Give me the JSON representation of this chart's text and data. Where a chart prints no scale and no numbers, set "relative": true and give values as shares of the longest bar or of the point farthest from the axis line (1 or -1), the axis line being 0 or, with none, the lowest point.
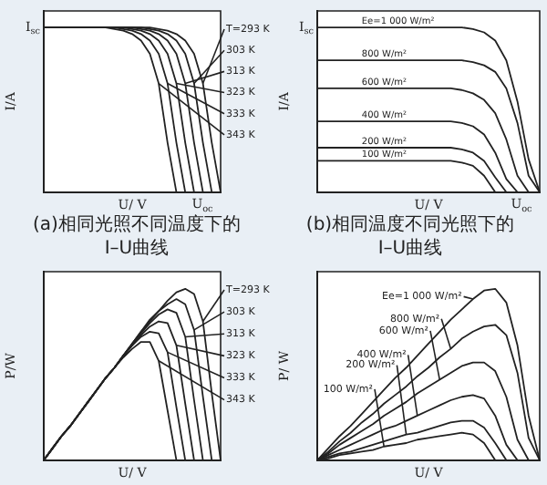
{
  "chart_data": [
    {
      "type": "line",
      "relative": true,
      "legend": "right",
      "title": "(a)相同光照不同温度下的I–U曲线",
      "xlabel": "U/ V",
      "ylabel": "I/A",
      "annotations": [
        "I$_{sc}$",
        "U$_{oc}$"
      ],
      "categories": [
        null,
        null,
        null,
        null,
        null,
        null,
        null,
        null,
        null,
        null,
        null,
        null,
        null,
        null,
        null,
        null,
        null,
        null,
        null,
        null,
        null
      ],
      "series": [
        {
          "name": "T=293 K",
          "color": "#222222",
          "values": [
            1,
            1,
            1,
            1,
            1,
            1,
            1,
            1,
            1,
            1,
            1,
            1,
            1,
            0.99,
            0.98,
            0.96,
            0.92,
            0.84,
            0.66,
            0.3,
            0
          ]
        },
        {
          "name": "303 K",
          "color": "#222222",
          "values": [
            1,
            1,
            1,
            1,
            1,
            1,
            1,
            1,
            1,
            1,
            1,
            1,
            0.99,
            0.98,
            0.96,
            0.92,
            0.84,
            0.66,
            0.3,
            0,
            null
          ]
        },
        {
          "name": "313 K",
          "color": "#222222",
          "values": [
            1,
            1,
            1,
            1,
            1,
            1,
            1,
            1,
            1,
            1,
            1,
            0.99,
            0.98,
            0.96,
            0.92,
            0.84,
            0.66,
            0.3,
            0,
            null,
            null
          ]
        },
        {
          "name": "323 K",
          "color": "#222222",
          "values": [
            1,
            1,
            1,
            1,
            1,
            1,
            1,
            1,
            1,
            1,
            0.99,
            0.98,
            0.96,
            0.92,
            0.84,
            0.66,
            0.3,
            0,
            null,
            null,
            null
          ]
        },
        {
          "name": "333 K",
          "color": "#222222",
          "values": [
            1,
            1,
            1,
            1,
            1,
            1,
            1,
            1,
            1,
            0.99,
            0.98,
            0.96,
            0.92,
            0.84,
            0.66,
            0.3,
            0,
            null,
            null,
            null,
            null
          ]
        },
        {
          "name": "343 K",
          "color": "#222222",
          "values": [
            1,
            1,
            1,
            1,
            1,
            1,
            1,
            1,
            0.99,
            0.98,
            0.96,
            0.92,
            0.84,
            0.66,
            0.3,
            0,
            null,
            null,
            null,
            null,
            null
          ]
        }
      ]
    },
    {
      "type": "line",
      "relative": true,
      "title": "(b)相同温度不同光照下的I–U曲线",
      "xlabel": "U/ V",
      "ylabel": "I/A",
      "annotations": [
        "I$_{sc}$",
        "U$_{oc}$"
      ],
      "categories": [
        null,
        null,
        null,
        null,
        null,
        null,
        null,
        null,
        null,
        null,
        null,
        null,
        null,
        null,
        null,
        null,
        null,
        null,
        null,
        null,
        null
      ],
      "series": [
        {
          "name": "Ee=1 000 W/m²",
          "color": "#222222",
          "values": [
            1,
            1,
            1,
            1,
            1,
            1,
            1,
            1,
            1,
            1,
            1,
            1,
            1,
            1,
            0.99,
            0.97,
            0.92,
            0.8,
            0.55,
            0.2,
            0
          ]
        },
        {
          "name": "800 W/m²",
          "color": "#222222",
          "values": [
            0.8,
            0.8,
            0.8,
            0.8,
            0.8,
            0.8,
            0.8,
            0.8,
            0.8,
            0.8,
            0.8,
            0.8,
            0.8,
            0.8,
            0.79,
            0.77,
            0.73,
            0.63,
            0.42,
            0.1,
            0
          ]
        },
        {
          "name": "600 W/m²",
          "color": "#222222",
          "values": [
            0.63,
            0.63,
            0.63,
            0.63,
            0.63,
            0.63,
            0.63,
            0.63,
            0.63,
            0.63,
            0.63,
            0.63,
            0.63,
            0.62,
            0.6,
            0.56,
            0.48,
            0.32,
            0.1,
            0,
            null
          ]
        },
        {
          "name": "400 W/m²",
          "color": "#222222",
          "values": [
            0.43,
            0.43,
            0.43,
            0.43,
            0.43,
            0.43,
            0.43,
            0.43,
            0.43,
            0.43,
            0.43,
            0.43,
            0.43,
            0.42,
            0.4,
            0.35,
            0.24,
            0.08,
            0,
            null,
            null
          ]
        },
        {
          "name": "200 W/m²",
          "color": "#222222",
          "values": [
            0.27,
            0.27,
            0.27,
            0.27,
            0.27,
            0.27,
            0.27,
            0.27,
            0.27,
            0.27,
            0.27,
            0.27,
            0.27,
            0.26,
            0.24,
            0.19,
            0.09,
            0,
            null,
            null,
            null
          ]
        },
        {
          "name": "100 W/m²",
          "color": "#222222",
          "values": [
            0.19,
            0.19,
            0.19,
            0.19,
            0.19,
            0.19,
            0.19,
            0.19,
            0.19,
            0.19,
            0.19,
            0.19,
            0.19,
            0.18,
            0.16,
            0.1,
            0,
            null,
            null,
            null,
            null
          ]
        }
      ]
    },
    {
      "type": "line",
      "relative": true,
      "legend": "right",
      "xlabel": "U/ V",
      "ylabel": "P/W",
      "categories": [
        null,
        null,
        null,
        null,
        null,
        null,
        null,
        null,
        null,
        null,
        null,
        null,
        null,
        null,
        null,
        null,
        null,
        null,
        null,
        null,
        null
      ],
      "series": [
        {
          "name": "T=293 K",
          "color": "#222222",
          "values": [
            0,
            0.07,
            0.14,
            0.2,
            0.27,
            0.34,
            0.41,
            0.48,
            0.54,
            0.61,
            0.68,
            0.75,
            0.82,
            0.87,
            0.93,
            0.98,
            1,
            0.97,
            0.81,
            0.39,
            0
          ]
        },
        {
          "name": "303 K",
          "color": "#222222",
          "values": [
            0,
            0.07,
            0.14,
            0.2,
            0.27,
            0.34,
            0.41,
            0.48,
            0.54,
            0.61,
            0.68,
            0.75,
            0.81,
            0.87,
            0.91,
            0.94,
            0.91,
            0.76,
            0.37,
            0,
            null
          ]
        },
        {
          "name": "313 K",
          "color": "#222222",
          "values": [
            0,
            0.07,
            0.14,
            0.2,
            0.27,
            0.34,
            0.41,
            0.48,
            0.54,
            0.61,
            0.68,
            0.74,
            0.8,
            0.85,
            0.88,
            0.86,
            0.72,
            0.35,
            0,
            null,
            null
          ]
        },
        {
          "name": "323 K",
          "color": "#222222",
          "values": [
            0,
            0.07,
            0.14,
            0.2,
            0.27,
            0.34,
            0.41,
            0.48,
            0.54,
            0.61,
            0.67,
            0.73,
            0.78,
            0.81,
            0.8,
            0.67,
            0.33,
            0,
            null,
            null,
            null
          ]
        },
        {
          "name": "333 K",
          "color": "#222222",
          "values": [
            0,
            0.07,
            0.14,
            0.2,
            0.27,
            0.34,
            0.41,
            0.48,
            0.54,
            0.61,
            0.67,
            0.72,
            0.75,
            0.74,
            0.63,
            0.31,
            0,
            null,
            null,
            null,
            null
          ]
        },
        {
          "name": "343 K",
          "color": "#222222",
          "values": [
            0,
            0.07,
            0.14,
            0.2,
            0.27,
            0.34,
            0.41,
            0.48,
            0.54,
            0.6,
            0.65,
            0.69,
            0.69,
            0.58,
            0.29,
            0,
            null,
            null,
            null,
            null,
            null
          ]
        }
      ]
    },
    {
      "type": "line",
      "relative": true,
      "xlabel": "U/ V",
      "ylabel": "P/ W",
      "categories": [
        null,
        null,
        null,
        null,
        null,
        null,
        null,
        null,
        null,
        null,
        null,
        null,
        null,
        null,
        null,
        null,
        null,
        null,
        null,
        null,
        null
      ],
      "series": [
        {
          "name": "Ee=1 000 W/m²",
          "color": "#222222",
          "values": [
            0,
            0.07,
            0.14,
            0.2,
            0.27,
            0.34,
            0.41,
            0.48,
            0.54,
            0.61,
            0.68,
            0.75,
            0.82,
            0.88,
            0.94,
            0.99,
            1,
            0.92,
            0.67,
            0.26,
            0
          ]
        },
        {
          "name": "800 W/m²",
          "color": "#222222",
          "values": [
            0,
            0.05,
            0.11,
            0.16,
            0.22,
            0.27,
            0.33,
            0.38,
            0.43,
            0.49,
            0.54,
            0.6,
            0.65,
            0.71,
            0.75,
            0.78,
            0.79,
            0.73,
            0.51,
            0.13,
            0
          ]
        },
        {
          "name": "600 W/m²",
          "color": "#222222",
          "values": [
            0,
            0.04,
            0.09,
            0.13,
            0.17,
            0.21,
            0.26,
            0.3,
            0.34,
            0.39,
            0.43,
            0.47,
            0.51,
            0.55,
            0.57,
            0.57,
            0.52,
            0.37,
            0.12,
            0,
            null
          ]
        },
        {
          "name": "400 W/m²",
          "color": "#222222",
          "values": [
            0,
            0.03,
            0.06,
            0.09,
            0.12,
            0.15,
            0.18,
            0.2,
            0.23,
            0.26,
            0.29,
            0.32,
            0.35,
            0.37,
            0.38,
            0.36,
            0.26,
            0.09,
            0,
            null,
            null
          ]
        },
        {
          "name": "200 W/m²",
          "color": "#222222",
          "values": [
            0,
            0.02,
            0.04,
            0.05,
            0.07,
            0.09,
            0.11,
            0.13,
            0.15,
            0.16,
            0.18,
            0.2,
            0.22,
            0.23,
            0.23,
            0.19,
            0.1,
            0,
            null,
            null,
            null
          ]
        },
        {
          "name": "100 W/m²",
          "color": "#222222",
          "values": [
            0,
            0.01,
            0.03,
            0.04,
            0.05,
            0.06,
            0.08,
            0.09,
            0.1,
            0.12,
            0.13,
            0.14,
            0.15,
            0.16,
            0.15,
            0.1,
            0,
            null,
            null,
            null,
            null
          ]
        }
      ]
    }
  ]
}
